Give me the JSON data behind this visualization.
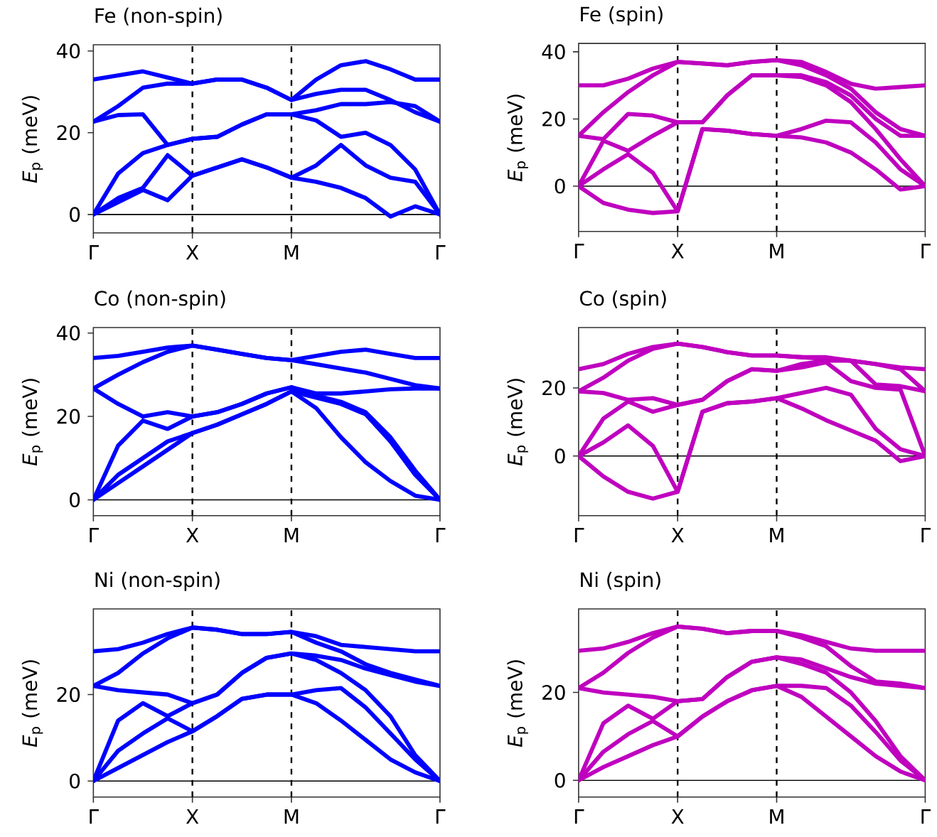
{
  "chart_data": [
    {
      "type": "line",
      "title": "Fe (non-spin)",
      "ylabel": "*E*$_{p}$ (meV)",
      "line_style": "solid",
      "categories": [
        "Γ",
        null,
        null,
        null,
        "X",
        null,
        null,
        null,
        "M",
        null,
        null,
        null,
        null,
        null,
        "Γ"
      ],
      "ylim": [
        -4.5,
        41.5
      ],
      "yticks": [
        0,
        20,
        40
      ],
      "ref_lines": [
        {
          "axis": "y",
          "value": 0,
          "color": "#000000",
          "line_style": "solid"
        },
        {
          "axis": "x",
          "value": "X",
          "color": "#000000",
          "line_style": "dashed"
        },
        {
          "axis": "x",
          "value": "M",
          "color": "#000000",
          "line_style": "dashed"
        }
      ],
      "series": [
        {
          "color": "#0000ff",
          "values": [
            0,
            3,
            6,
            3.5,
            9.5,
            11.5,
            13.5,
            11.5,
            9,
            8,
            6.5,
            4,
            -0.5,
            2,
            0
          ]
        },
        {
          "color": "#0000ff",
          "values": [
            0,
            4,
            6.5,
            14.5,
            9.5,
            11.5,
            13.5,
            11.5,
            9,
            12,
            17,
            12,
            9,
            8,
            0
          ]
        },
        {
          "color": "#0000ff",
          "values": [
            0,
            10,
            15,
            17,
            18.5,
            19,
            22,
            24.5,
            24.5,
            23,
            19,
            20,
            17,
            11,
            0
          ]
        },
        {
          "color": "#0000ff",
          "values": [
            22.7,
            24.3,
            24.5,
            17,
            18.5,
            19,
            22,
            24.5,
            24.5,
            25.5,
            27,
            27,
            27.5,
            26.5,
            22.7
          ]
        },
        {
          "color": "#0000ff",
          "values": [
            22.7,
            26.5,
            31,
            32,
            32,
            33,
            33,
            31,
            28,
            29.5,
            30.5,
            30.5,
            28,
            25,
            22.7
          ]
        },
        {
          "color": "#0000ff",
          "values": [
            33,
            34,
            35,
            33.5,
            32,
            33,
            33,
            31,
            28,
            33,
            36.5,
            37.5,
            35.5,
            33,
            33
          ]
        }
      ]
    },
    {
      "type": "line",
      "title": "Fe (spin)",
      "ylabel": "*E*$_{p}$ (meV)",
      "line_style": "solid",
      "categories": [
        "Γ",
        null,
        null,
        null,
        "X",
        null,
        null,
        null,
        "M",
        null,
        null,
        null,
        null,
        null,
        "Γ"
      ],
      "ylim": [
        -13.5,
        42.5
      ],
      "yticks": [
        0,
        20,
        40
      ],
      "ref_lines": [
        {
          "axis": "y",
          "value": 0,
          "color": "#000000",
          "line_style": "solid"
        },
        {
          "axis": "x",
          "value": "X",
          "color": "#000000",
          "line_style": "dashed"
        },
        {
          "axis": "x",
          "value": "M",
          "color": "#000000",
          "line_style": "dashed"
        }
      ],
      "series": [
        {
          "color": "#bf00bf",
          "values": [
            0,
            -5,
            -7,
            -8,
            -7.5,
            17,
            16.5,
            15.5,
            15,
            14.5,
            13,
            10,
            5,
            -1,
            0
          ]
        },
        {
          "color": "#bf00bf",
          "values": [
            0,
            5,
            9.5,
            4,
            -7.5,
            17,
            16.5,
            15.5,
            15,
            17,
            19.5,
            19,
            13,
            5,
            0
          ]
        },
        {
          "color": "#bf00bf",
          "values": [
            0,
            13.5,
            10.5,
            15,
            19,
            19,
            27,
            33,
            33,
            32.5,
            30,
            25,
            17,
            8,
            0
          ]
        },
        {
          "color": "#bf00bf",
          "values": [
            15,
            14,
            21.5,
            21,
            19,
            19,
            27,
            33,
            33,
            33,
            31,
            27,
            20,
            15,
            15
          ]
        },
        {
          "color": "#bf00bf",
          "values": [
            15,
            22,
            28,
            33,
            37,
            36.5,
            36,
            37,
            37.5,
            36,
            33,
            29,
            22,
            17,
            15
          ]
        },
        {
          "color": "#bf00bf",
          "values": [
            30,
            30,
            32,
            35,
            37,
            36.5,
            36,
            37,
            37.5,
            37,
            34,
            30.5,
            29,
            29.5,
            30
          ]
        }
      ]
    },
    {
      "type": "line",
      "title": "Co (non-spin)",
      "ylabel": "*E*$_{p}$ (meV)",
      "line_style": "solid",
      "categories": [
        "Γ",
        null,
        null,
        null,
        "X",
        null,
        null,
        null,
        "M",
        null,
        null,
        null,
        null,
        null,
        "Γ"
      ],
      "ylim": [
        -3.8,
        41.3
      ],
      "yticks": [
        0,
        20,
        40
      ],
      "ref_lines": [
        {
          "axis": "y",
          "value": 0,
          "color": "#000000",
          "line_style": "solid"
        },
        {
          "axis": "x",
          "value": "X",
          "color": "#000000",
          "line_style": "dashed"
        },
        {
          "axis": "x",
          "value": "M",
          "color": "#000000",
          "line_style": "dashed"
        }
      ],
      "series": [
        {
          "color": "#0000ff",
          "values": [
            0,
            4,
            8,
            12,
            16,
            18,
            20.5,
            23,
            26,
            22,
            15,
            9,
            4.5,
            1,
            0
          ]
        },
        {
          "color": "#0000ff",
          "values": [
            0,
            6,
            10,
            14,
            16,
            18,
            20.5,
            23,
            26,
            24.5,
            23,
            20.5,
            14,
            6,
            0
          ]
        },
        {
          "color": "#0000ff",
          "values": [
            0,
            13,
            19,
            17,
            20,
            21,
            23,
            25.5,
            27,
            25,
            23.5,
            21,
            15,
            7,
            0
          ]
        },
        {
          "color": "#0000ff",
          "values": [
            26.7,
            23,
            20,
            21,
            20,
            21,
            23,
            25.5,
            27,
            25.5,
            25.5,
            26,
            26.5,
            26.7,
            26.7
          ]
        },
        {
          "color": "#0000ff",
          "values": [
            26.7,
            30,
            33,
            35.5,
            37,
            36,
            35,
            34,
            33.5,
            34.5,
            35.5,
            36,
            35,
            34,
            34
          ]
        },
        {
          "color": "#0000ff",
          "values": [
            34,
            34.5,
            35.5,
            36.5,
            37,
            36,
            35,
            34,
            33.5,
            32.5,
            31.5,
            30.5,
            29,
            27.5,
            26.7
          ]
        }
      ]
    },
    {
      "type": "line",
      "title": "Co (spin)",
      "ylabel": "*E*$_{p}$ (meV)",
      "line_style": "solid",
      "categories": [
        "Γ",
        null,
        null,
        null,
        "X",
        null,
        null,
        null,
        "M",
        null,
        null,
        null,
        null,
        null,
        "Γ"
      ],
      "ylim": [
        -17.5,
        37.7
      ],
      "yticks": [
        0,
        20
      ],
      "ref_lines": [
        {
          "axis": "y",
          "value": 0,
          "color": "#000000",
          "line_style": "solid"
        },
        {
          "axis": "x",
          "value": "X",
          "color": "#000000",
          "line_style": "dashed"
        },
        {
          "axis": "x",
          "value": "M",
          "color": "#000000",
          "line_style": "dashed"
        }
      ],
      "series": [
        {
          "color": "#bf00bf",
          "values": [
            0,
            -6,
            -10.5,
            -12.5,
            -10.5,
            13,
            15.5,
            16,
            17,
            14,
            10.5,
            7.5,
            4.5,
            -1.5,
            0
          ]
        },
        {
          "color": "#bf00bf",
          "values": [
            0,
            4,
            9,
            3,
            -10.5,
            13,
            15.5,
            16,
            17,
            18.5,
            20,
            18,
            8,
            2,
            0
          ]
        },
        {
          "color": "#bf00bf",
          "values": [
            0,
            11,
            16,
            13,
            15,
            16.5,
            22,
            25.5,
            25,
            26,
            27.5,
            22,
            20,
            19.5,
            0
          ]
        },
        {
          "color": "#bf00bf",
          "values": [
            19,
            18.5,
            16.5,
            17,
            15,
            16.5,
            22,
            25.5,
            25,
            27,
            28,
            28,
            21,
            20.5,
            19
          ]
        },
        {
          "color": "#bf00bf",
          "values": [
            19,
            23,
            28,
            31.5,
            33,
            32,
            30.5,
            29.5,
            29.5,
            29,
            29,
            28,
            27,
            26,
            25.5
          ]
        },
        {
          "color": "#bf00bf",
          "values": [
            25.5,
            27,
            30,
            32,
            33,
            32,
            30.5,
            29.5,
            29.5,
            29,
            28.5,
            28,
            27,
            25.5,
            19
          ]
        }
      ]
    },
    {
      "type": "line",
      "title": "Ni (non-spin)",
      "ylabel": "*E*$_{p}$ (meV)",
      "line_style": "solid",
      "categories": [
        "Γ",
        null,
        null,
        null,
        "X",
        null,
        null,
        null,
        "M",
        null,
        null,
        null,
        null,
        null,
        "Γ"
      ],
      "ylim": [
        -3.7,
        39.8
      ],
      "yticks": [
        0,
        20
      ],
      "ref_lines": [
        {
          "axis": "y",
          "value": 0,
          "color": "#000000",
          "line_style": "solid"
        },
        {
          "axis": "x",
          "value": "X",
          "color": "#000000",
          "line_style": "dashed"
        },
        {
          "axis": "x",
          "value": "M",
          "color": "#000000",
          "line_style": "dashed"
        }
      ],
      "series": [
        {
          "color": "#0000ff",
          "values": [
            0,
            3,
            6,
            9,
            11.5,
            15,
            19,
            20,
            20,
            18,
            14,
            9.5,
            5,
            2,
            0
          ]
        },
        {
          "color": "#0000ff",
          "values": [
            0,
            7,
            11,
            14.5,
            11.5,
            15,
            19,
            20,
            20,
            21,
            21.5,
            17,
            11,
            5,
            0
          ]
        },
        {
          "color": "#0000ff",
          "values": [
            0,
            14,
            18,
            15,
            18,
            20,
            25,
            28.5,
            29.5,
            28,
            25,
            21,
            15,
            6,
            0
          ]
        },
        {
          "color": "#0000ff",
          "values": [
            22,
            21,
            20.5,
            20,
            18,
            20,
            25,
            28.5,
            29.5,
            29,
            28,
            26,
            24.5,
            23,
            22
          ]
        },
        {
          "color": "#0000ff",
          "values": [
            22,
            25,
            29.5,
            33,
            35.5,
            35,
            34,
            34,
            34.5,
            33.5,
            31.5,
            31,
            30.5,
            30,
            30
          ]
        },
        {
          "color": "#0000ff",
          "values": [
            30,
            30.5,
            32,
            34,
            35.5,
            35,
            34,
            34,
            34.5,
            32,
            30,
            27,
            25,
            23.5,
            22
          ]
        }
      ]
    },
    {
      "type": "line",
      "title": "Ni (spin)",
      "ylabel": "*E*$_{p}$ (meV)",
      "line_style": "solid",
      "categories": [
        "Γ",
        null,
        null,
        null,
        "X",
        null,
        null,
        null,
        "M",
        null,
        null,
        null,
        null,
        null,
        "Γ"
      ],
      "ylim": [
        -3.8,
        39
      ],
      "yticks": [
        0,
        20
      ],
      "ref_lines": [
        {
          "axis": "y",
          "value": 0,
          "color": "#000000",
          "line_style": "solid"
        },
        {
          "axis": "x",
          "value": "X",
          "color": "#000000",
          "line_style": "dashed"
        },
        {
          "axis": "x",
          "value": "M",
          "color": "#000000",
          "line_style": "dashed"
        }
      ],
      "series": [
        {
          "color": "#bf00bf",
          "values": [
            0,
            3,
            5.5,
            8,
            10,
            14.5,
            18,
            20.5,
            21.5,
            19,
            14.5,
            10,
            5.5,
            2,
            0
          ]
        },
        {
          "color": "#bf00bf",
          "values": [
            0,
            6.5,
            10.5,
            13.5,
            10,
            14.5,
            18,
            20.5,
            21.5,
            21.5,
            21,
            17,
            11,
            4.5,
            0
          ]
        },
        {
          "color": "#bf00bf",
          "values": [
            0,
            13,
            17,
            14,
            18,
            18.5,
            23.5,
            27,
            28,
            26.5,
            24.5,
            20,
            13.5,
            5.5,
            0
          ]
        },
        {
          "color": "#bf00bf",
          "values": [
            21,
            20,
            19.5,
            19,
            18,
            18.5,
            23.5,
            27,
            28,
            27.5,
            25.5,
            23.5,
            22,
            21.5,
            21
          ]
        },
        {
          "color": "#bf00bf",
          "values": [
            21,
            24.5,
            29,
            32.5,
            35,
            34.5,
            33.5,
            34,
            34,
            33,
            31.5,
            30,
            29.5,
            29.5,
            29.5
          ]
        },
        {
          "color": "#bf00bf",
          "values": [
            29.5,
            30,
            31.5,
            33.5,
            35,
            34.5,
            33.5,
            34,
            34,
            32.5,
            30.5,
            26,
            22.5,
            22,
            21
          ]
        }
      ]
    }
  ]
}
